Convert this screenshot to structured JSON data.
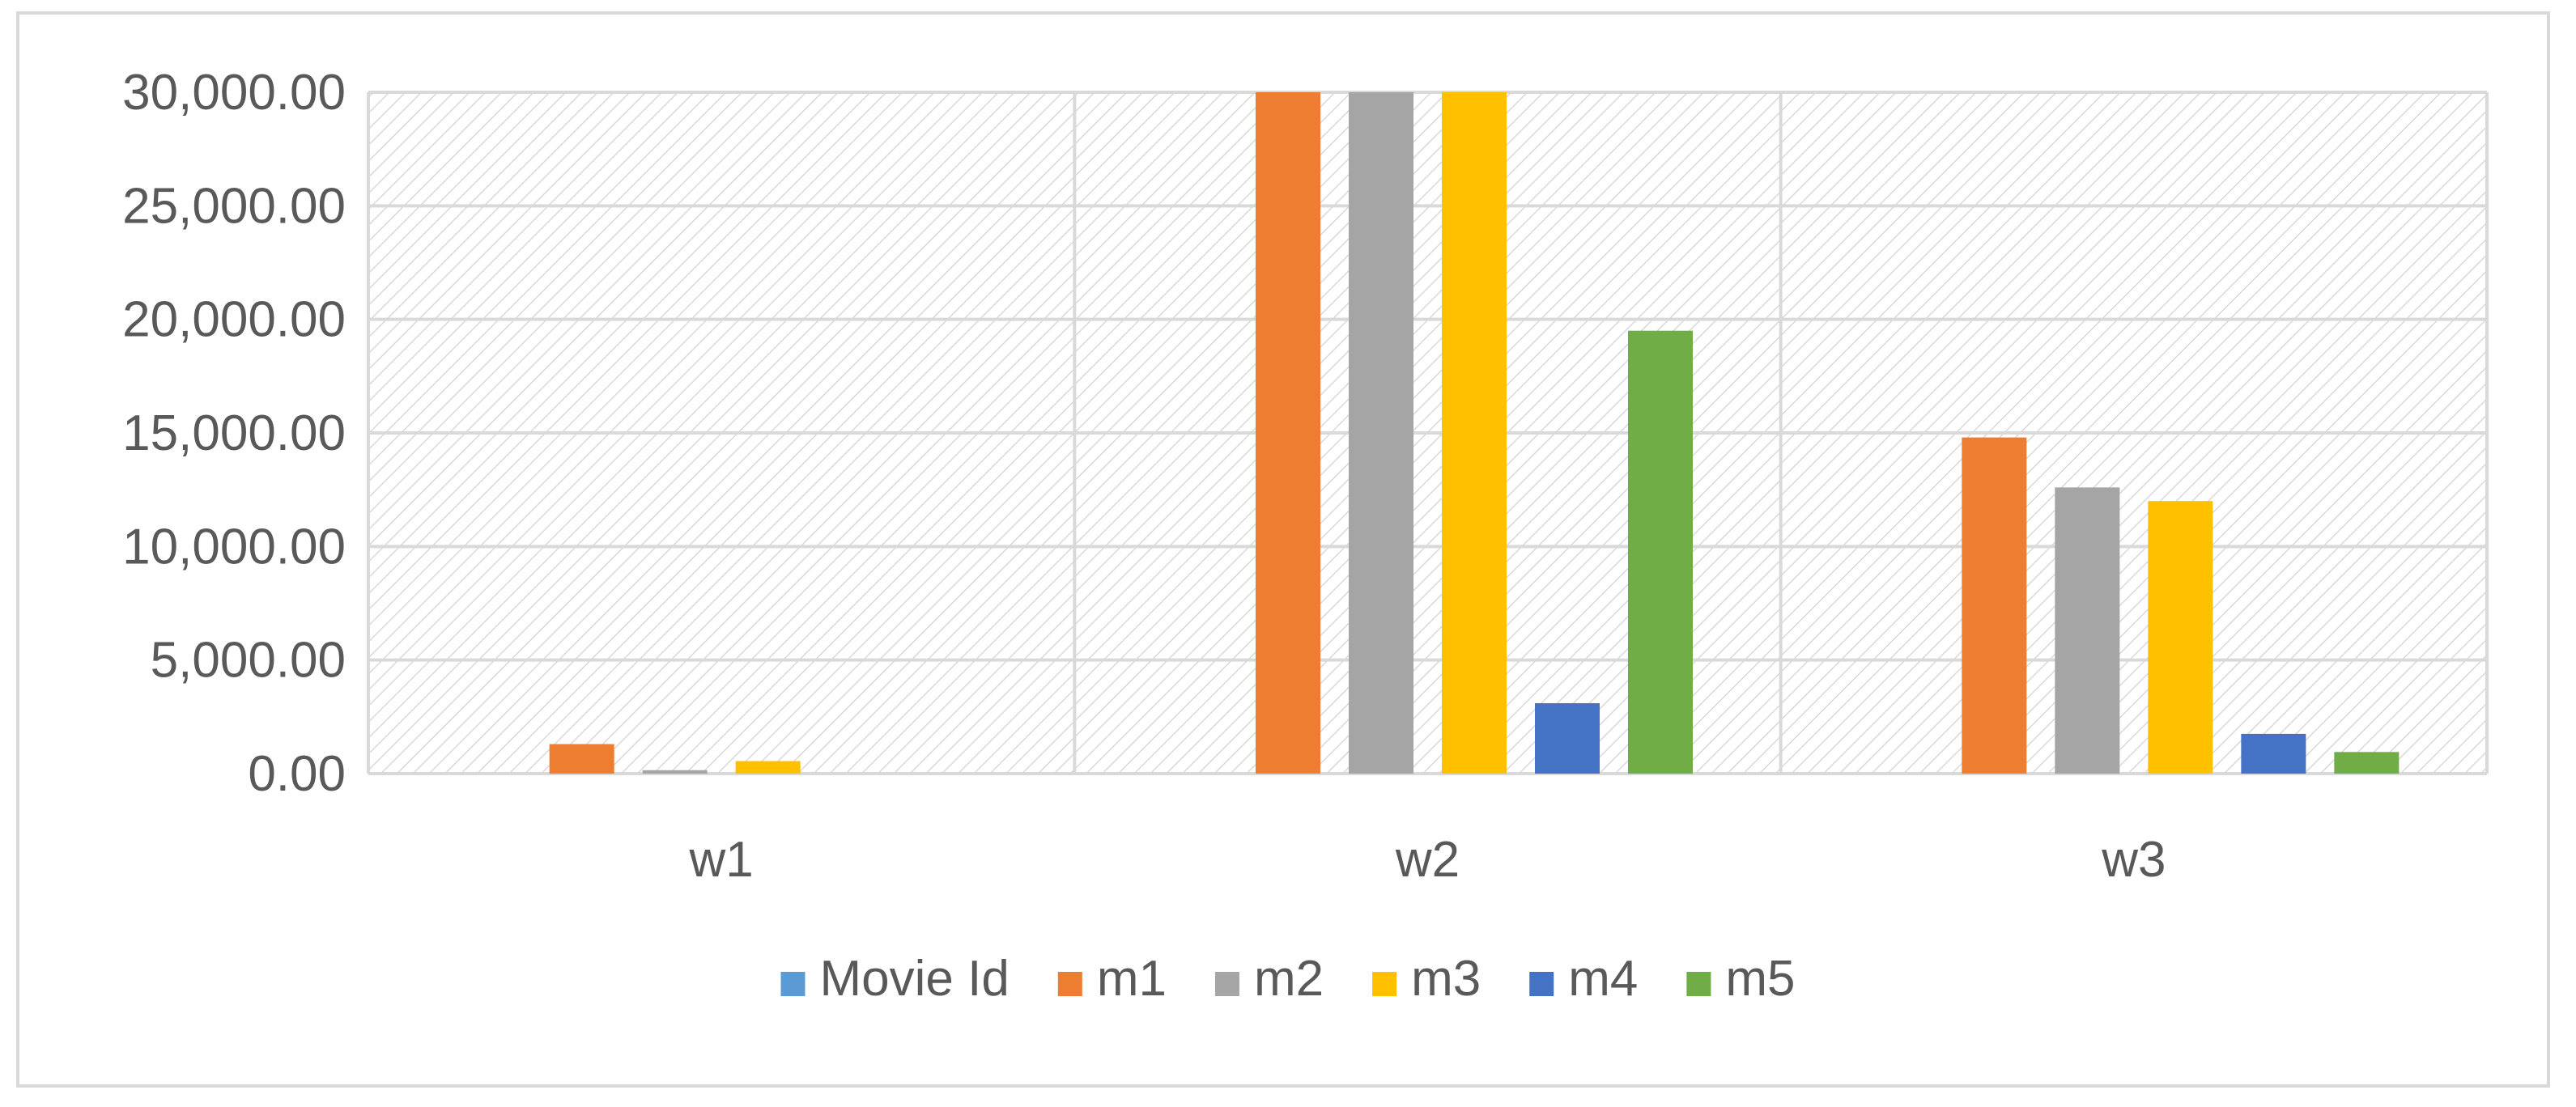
{
  "chart_data": {
    "type": "bar",
    "title": "",
    "xlabel": "",
    "ylabel": "",
    "categories": [
      "w1",
      "w2",
      "w3"
    ],
    "series": [
      {
        "name": "Movie Id",
        "color": "#5b9bd5",
        "values": [
          0,
          0,
          0
        ]
      },
      {
        "name": "m1",
        "color": "#ed7d31",
        "values": [
          1300,
          30000,
          14800
        ]
      },
      {
        "name": "m2",
        "color": "#a5a5a5",
        "values": [
          150,
          30000,
          12600
        ]
      },
      {
        "name": "m3",
        "color": "#ffc000",
        "values": [
          550,
          30000,
          12000
        ]
      },
      {
        "name": "m4",
        "color": "#4472c4",
        "values": [
          0,
          3100,
          1750
        ]
      },
      {
        "name": "m5",
        "color": "#70ad47",
        "values": [
          0,
          19500,
          950
        ]
      }
    ],
    "ylim": [
      0,
      30000
    ],
    "yticks": [
      "0.00",
      "5,000.00",
      "10,000.00",
      "15,000.00",
      "20,000.00",
      "25,000.00",
      "30,000.00"
    ],
    "grid": true,
    "plot_background": "diagonal-hatch",
    "legend_position": "bottom"
  }
}
